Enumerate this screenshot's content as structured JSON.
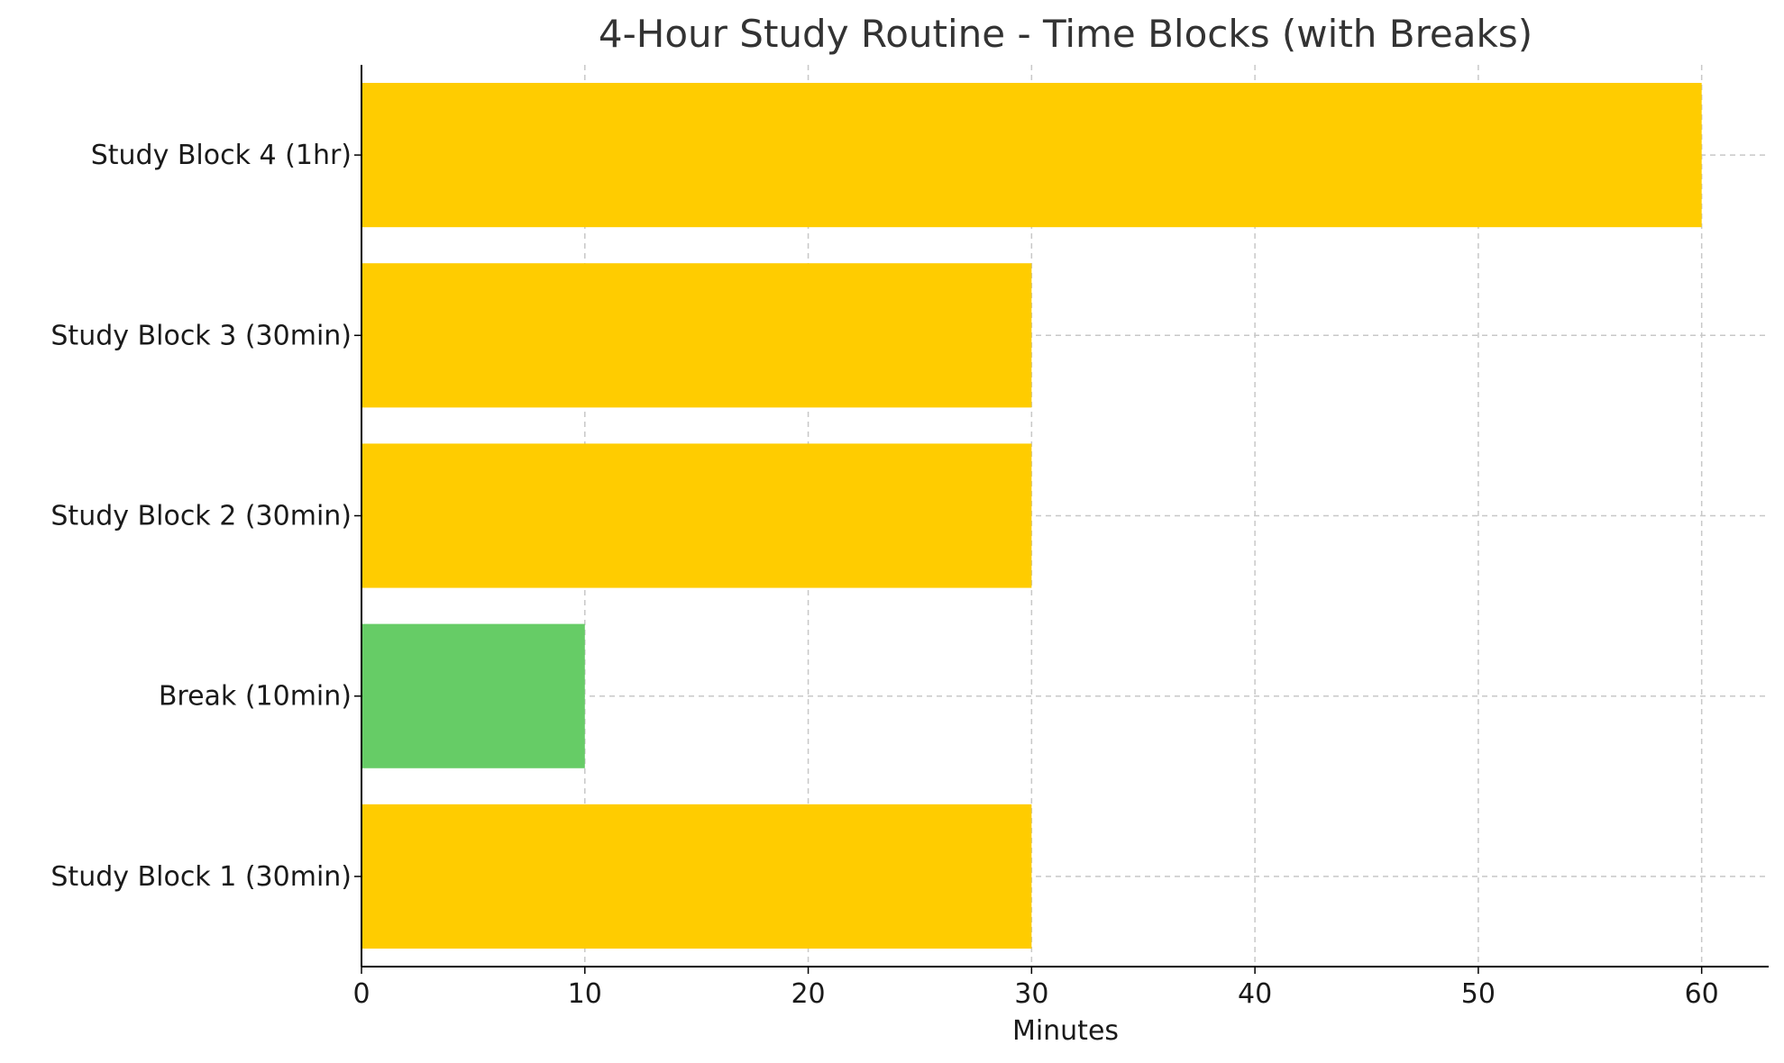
{
  "chart_data": {
    "type": "bar",
    "orientation": "horizontal",
    "title": "4-Hour Study Routine - Time Blocks (with Breaks)",
    "xlabel": "Minutes",
    "ylabel": "",
    "categories": [
      "Study Block 1 (30min)",
      "Break (10min)",
      "Study Block 2 (30min)",
      "Study Block 3 (30min)",
      "Study Block 4 (1hr)"
    ],
    "values": [
      30,
      10,
      30,
      30,
      60
    ],
    "colors": [
      "#ffcc00",
      "#66cc66",
      "#ffcc00",
      "#ffcc00",
      "#ffcc00"
    ],
    "xlim": [
      0,
      63
    ],
    "xticks": [
      0,
      10,
      20,
      30,
      40,
      50,
      60
    ],
    "grid": true
  }
}
